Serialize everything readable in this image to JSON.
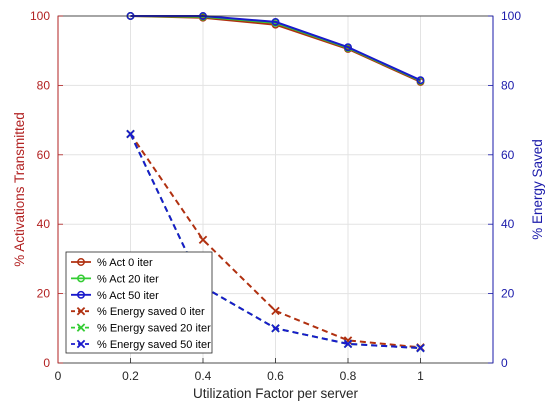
{
  "chart_data": {
    "type": "line",
    "xlabel": "Utilization Factor per server",
    "ylabel_left": "% Activations Transmitted",
    "ylabel_right": "% Energy Saved",
    "xlim": [
      0,
      1.2
    ],
    "ylim_left": [
      0,
      100
    ],
    "ylim_right": [
      0,
      100
    ],
    "x_ticks": [
      "0",
      "0.2",
      "0.4",
      "0.6",
      "0.8",
      "1"
    ],
    "y_ticks_left": [
      "0",
      "20",
      "40",
      "60",
      "80",
      "100"
    ],
    "y_ticks_right": [
      "0",
      "20",
      "40",
      "60",
      "80",
      "100"
    ],
    "grid": true,
    "legend_position": "bottom-left",
    "colors": {
      "left_axis": "#b22222",
      "right_axis": "#1a1aaa",
      "dark_red": "#b03010",
      "green": "#33cc33",
      "blue": "#1a1acc"
    },
    "series": [
      {
        "name": "% Act 0 iter",
        "axis": "left",
        "style": "solid",
        "marker": "circle",
        "color": "#b03010",
        "x": [
          0.2,
          0.4,
          0.6,
          0.8,
          1.0
        ],
        "values": [
          100,
          99.5,
          97.5,
          90.5,
          81
        ]
      },
      {
        "name": "% Act 20 iter",
        "axis": "left",
        "style": "solid",
        "marker": "circle",
        "color": "#33cc33",
        "x": [
          0.2,
          0.4,
          0.6,
          0.8,
          1.0
        ],
        "values": [
          100,
          99.8,
          98,
          90.8,
          81.3
        ]
      },
      {
        "name": "% Act 50 iter",
        "axis": "left",
        "style": "solid",
        "marker": "circle",
        "color": "#1a1acc",
        "x": [
          0.2,
          0.4,
          0.6,
          0.8,
          1.0
        ],
        "values": [
          100,
          100,
          98.3,
          91,
          81.5
        ]
      },
      {
        "name": "% Energy saved 0 iter",
        "axis": "right",
        "style": "dashed",
        "marker": "x",
        "color": "#b03010",
        "x": [
          0.2,
          0.4,
          0.6,
          0.8,
          1.0
        ],
        "values": [
          66,
          35.5,
          15,
          6.5,
          4.5
        ]
      },
      {
        "name": "% Energy saved 20 iter",
        "axis": "right",
        "style": "dashed",
        "marker": "x",
        "color": "#33cc33",
        "x": [
          0.2,
          0.4,
          0.6,
          0.8,
          1.0
        ],
        "values": [
          66,
          22,
          10,
          5.5,
          4.3
        ]
      },
      {
        "name": "% Energy saved 50 iter",
        "axis": "right",
        "style": "dashed",
        "marker": "x",
        "color": "#1a1acc",
        "x": [
          0.2,
          0.4,
          0.6,
          0.8,
          1.0
        ],
        "values": [
          66,
          22,
          10,
          5.5,
          4.3
        ]
      }
    ]
  }
}
